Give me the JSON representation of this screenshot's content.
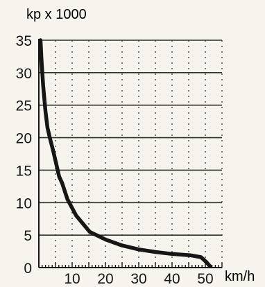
{
  "chart_data": {
    "type": "line",
    "title": "",
    "xlabel": "km/h",
    "ylabel": "kp x 1000",
    "xlim": [
      0,
      55
    ],
    "ylim": [
      0,
      35
    ],
    "x_ticks": [
      10,
      20,
      30,
      40,
      50
    ],
    "x_tick_labels": [
      "10",
      "20",
      "30",
      "40",
      "50"
    ],
    "y_ticks": [
      0,
      5,
      10,
      15,
      20,
      25,
      30,
      35
    ],
    "y_tick_labels": [
      "0",
      "5",
      "10",
      "15",
      "20",
      "25",
      "30",
      "35"
    ],
    "grid": {
      "horizontal": "solid",
      "vertical": "dotted"
    },
    "series": [
      {
        "x": [
          0.5,
          0.8,
          1.3,
          2.0,
          2.6,
          3.3,
          4.3,
          5.2,
          6.1,
          7.0,
          8.6,
          11.2,
          15.3,
          20.1,
          25.0,
          30.0,
          35.0,
          40.0,
          45.5,
          48.7,
          50.2,
          51.4
        ],
        "y": [
          35.0,
          32.0,
          28.0,
          24.0,
          21.5,
          20.0,
          18.0,
          16.0,
          14.0,
          13.0,
          10.5,
          8.0,
          5.5,
          4.3,
          3.4,
          2.8,
          2.4,
          2.1,
          1.9,
          1.6,
          0.9,
          0.2
        ]
      }
    ],
    "colors": {
      "line": "#161616",
      "grid": "#2e2e2e",
      "background": "#f7f4ee"
    }
  }
}
